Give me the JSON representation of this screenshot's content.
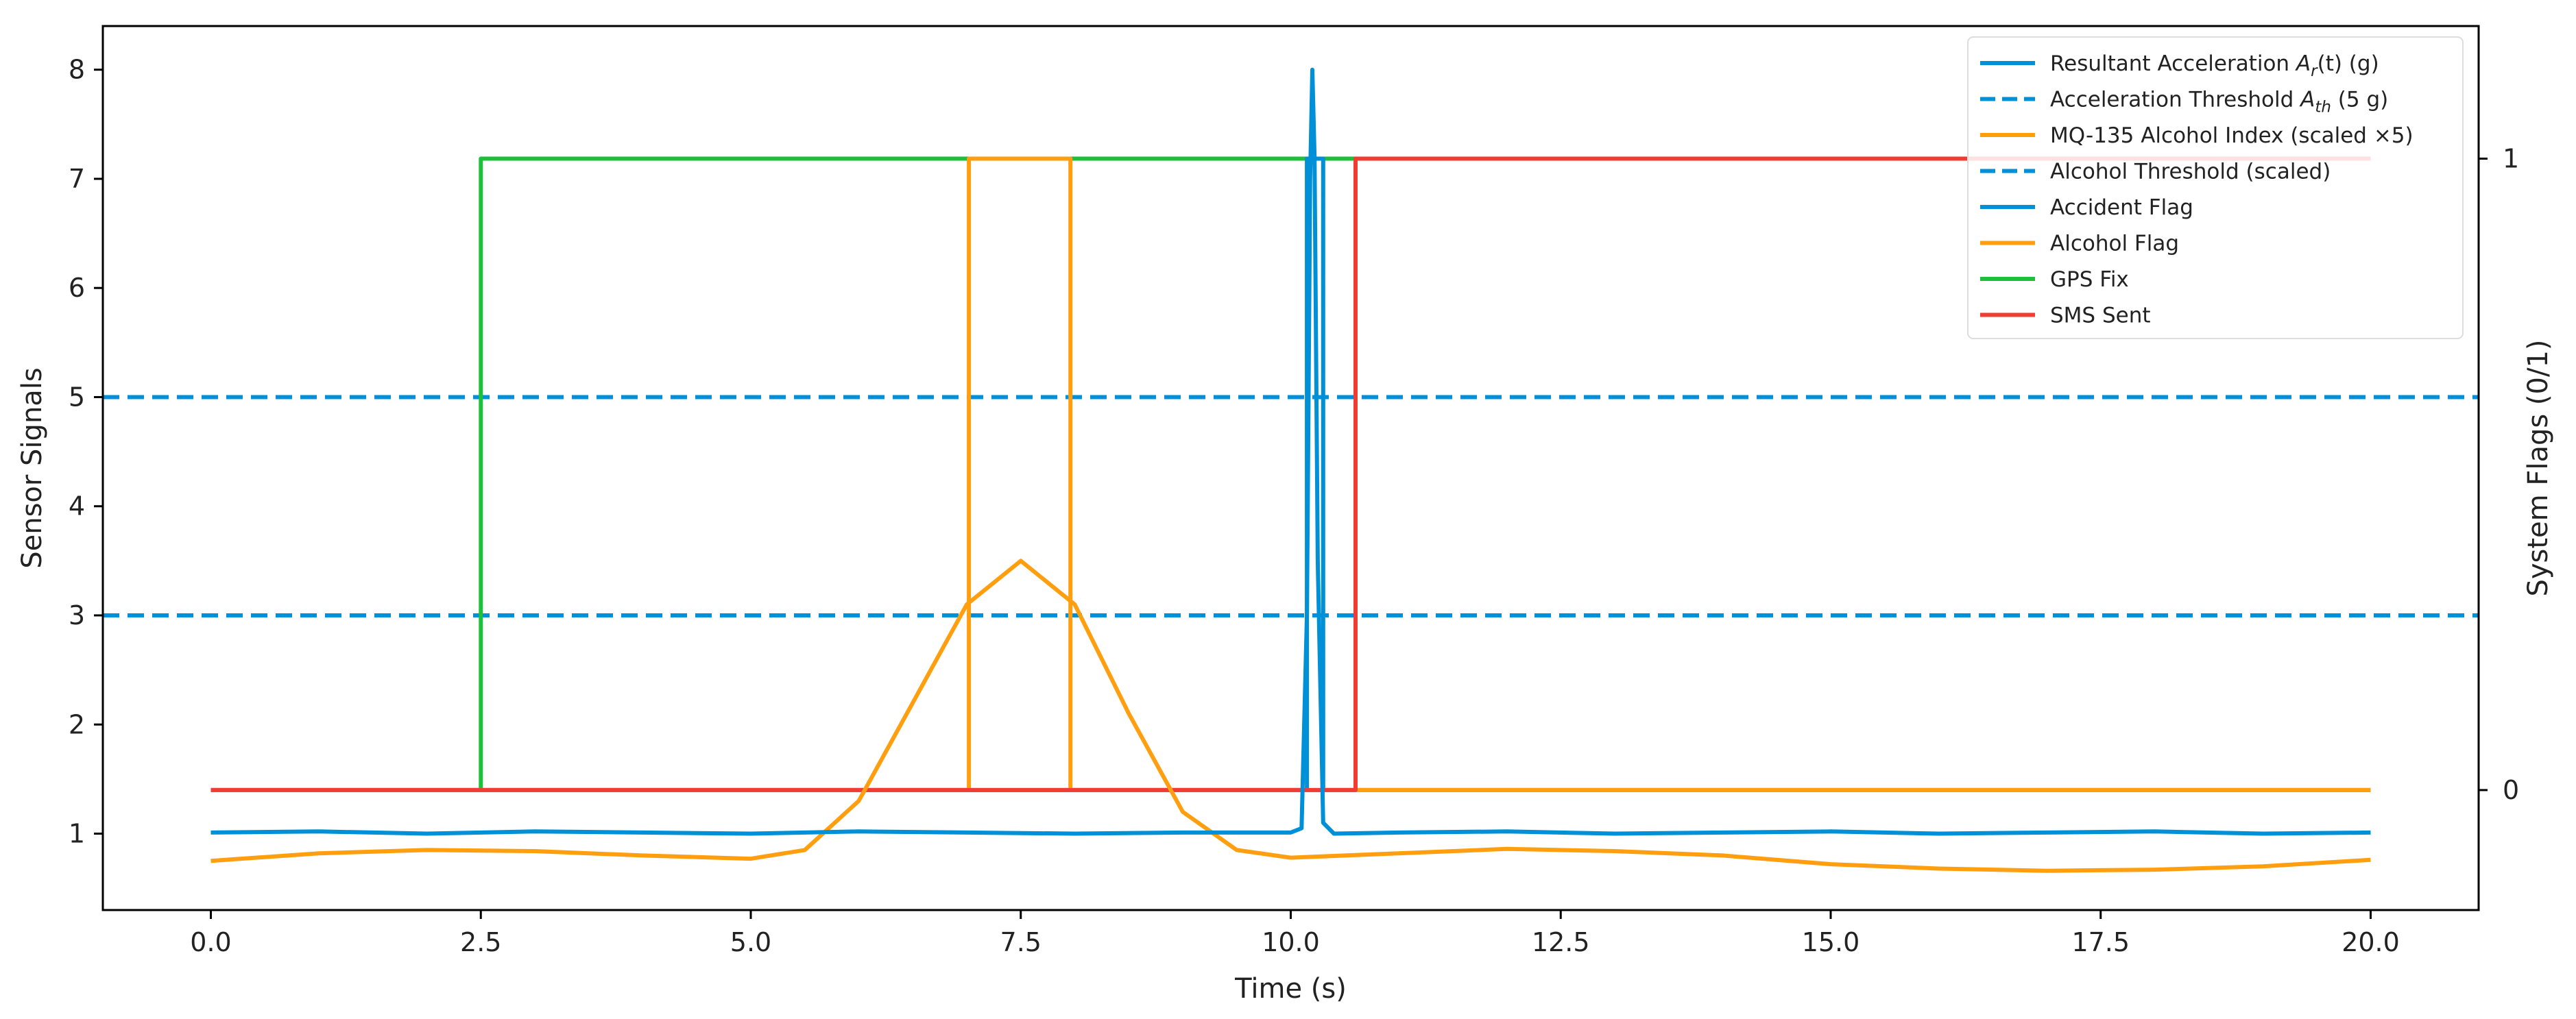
{
  "chart_data": {
    "type": "line",
    "title": "",
    "xlabel": "Time (s)",
    "ylabel": "Sensor Signals",
    "y2label": "System Flags (0/1)",
    "xlim": [
      -1,
      21
    ],
    "ylim": [
      0.3,
      8.4
    ],
    "y2lim": [
      -0.19,
      1.21
    ],
    "xticks": [
      0.0,
      2.5,
      5.0,
      7.5,
      10.0,
      12.5,
      15.0,
      17.5,
      20.0
    ],
    "xtick_labels": [
      "0.0",
      "2.5",
      "5.0",
      "7.5",
      "10.0",
      "12.5",
      "15.0",
      "17.5",
      "20.0"
    ],
    "yticks": [
      1,
      2,
      3,
      4,
      5,
      6,
      7,
      8
    ],
    "ytick_labels": [
      "1",
      "2",
      "3",
      "4",
      "5",
      "6",
      "7",
      "8"
    ],
    "y2ticks": [
      0,
      1
    ],
    "y2tick_labels": [
      "0",
      "1"
    ],
    "grid": false,
    "legend_position": "top-right",
    "colors": {
      "accel": "#0090d8",
      "alcohol": "#ff9f0f",
      "gps": "#1cc03a",
      "sms": "#f03c32"
    },
    "series": [
      {
        "name": "Resultant Acceleration A_r(t) (g)",
        "legend_main": "Resultant Acceleration ",
        "legend_math": "A",
        "legend_sub": "r",
        "legend_tail": "(t) (g)",
        "axis": "left",
        "style": "solid",
        "color_key": "accel",
        "x": [
          0,
          1,
          2,
          3,
          4,
          5,
          6,
          7,
          8,
          9,
          10,
          10.1,
          10.15,
          10.18,
          10.2,
          10.22,
          10.25,
          10.3,
          10.4,
          11,
          12,
          13,
          14,
          15,
          16,
          17,
          18,
          19,
          20
        ],
        "y": [
          1.01,
          1.02,
          1.0,
          1.02,
          1.01,
          1.0,
          1.02,
          1.01,
          1.0,
          1.01,
          1.01,
          1.05,
          3.0,
          7.0,
          8.0,
          7.2,
          3.5,
          1.1,
          1.0,
          1.01,
          1.02,
          1.0,
          1.01,
          1.02,
          1.0,
          1.01,
          1.02,
          1.0,
          1.01
        ]
      },
      {
        "name": "Acceleration Threshold A_th (5 g)",
        "legend_main": "Acceleration Threshold ",
        "legend_math": "A",
        "legend_sub": "th",
        "legend_tail": " (5 g)",
        "axis": "left",
        "style": "dashed",
        "color_key": "accel",
        "x": [
          -1,
          21
        ],
        "y": [
          5,
          5
        ]
      },
      {
        "name": "MQ-135 Alcohol Index (scaled ×5)",
        "axis": "left",
        "style": "solid",
        "color_key": "alcohol",
        "x": [
          0,
          1,
          2,
          3,
          4,
          5,
          5.5,
          6,
          6.5,
          7,
          7.5,
          8,
          8.5,
          9,
          9.5,
          10,
          11,
          12,
          13,
          14,
          15,
          16,
          17,
          18,
          19,
          20
        ],
        "y": [
          0.75,
          0.82,
          0.85,
          0.84,
          0.8,
          0.77,
          0.85,
          1.3,
          2.2,
          3.1,
          3.5,
          3.1,
          2.1,
          1.2,
          0.85,
          0.78,
          0.82,
          0.86,
          0.84,
          0.8,
          0.72,
          0.68,
          0.66,
          0.67,
          0.7,
          0.76
        ]
      },
      {
        "name": "Alcohol Threshold (scaled)",
        "axis": "left",
        "style": "dashed",
        "color_key": "accel",
        "x": [
          -1,
          21
        ],
        "y": [
          3,
          3
        ]
      },
      {
        "name": "Accident Flag",
        "axis": "right",
        "style": "step",
        "color_key": "accel",
        "x": [
          0,
          10.15,
          10.15,
          10.3,
          10.3,
          20
        ],
        "y": [
          0,
          0,
          1,
          1,
          0,
          0
        ]
      },
      {
        "name": "Alcohol Flag",
        "axis": "right",
        "style": "step",
        "color_key": "alcohol",
        "x": [
          0,
          7.02,
          7.02,
          7.96,
          7.96,
          20
        ],
        "y": [
          0,
          0,
          1,
          1,
          0,
          0
        ]
      },
      {
        "name": "GPS Fix",
        "axis": "right",
        "style": "step",
        "color_key": "gps",
        "x": [
          2.5,
          2.5,
          10.6
        ],
        "y": [
          0,
          1,
          1
        ]
      },
      {
        "name": "SMS Sent",
        "axis": "right",
        "style": "step",
        "color_key": "sms",
        "x": [
          0,
          10.6,
          10.6,
          20
        ],
        "y": [
          0,
          0,
          1,
          1
        ]
      }
    ]
  }
}
